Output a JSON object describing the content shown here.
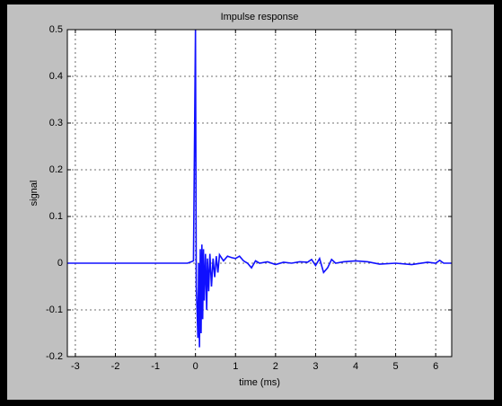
{
  "chart_data": {
    "type": "line",
    "title": "Impulse response",
    "xlabel": "time (ms)",
    "ylabel": "signal",
    "x": [
      -3.2,
      -0.2,
      -0.1,
      -0.05,
      0,
      0.02,
      0.04,
      0.06,
      0.08,
      0.1,
      0.12,
      0.14,
      0.16,
      0.18,
      0.2,
      0.22,
      0.25,
      0.28,
      0.3,
      0.33,
      0.36,
      0.4,
      0.44,
      0.48,
      0.52,
      0.56,
      0.6,
      0.7,
      0.8,
      0.9,
      1.0,
      1.1,
      1.2,
      1.3,
      1.4,
      1.5,
      1.6,
      1.8,
      2.0,
      2.2,
      2.4,
      2.6,
      2.8,
      2.9,
      3.0,
      3.1,
      3.2,
      3.3,
      3.4,
      3.5,
      3.7,
      4.0,
      4.3,
      4.6,
      5.0,
      5.4,
      5.8,
      6.0,
      6.1,
      6.2,
      6.4
    ],
    "values": [
      0,
      0,
      0.003,
      0.005,
      0.5,
      -0.05,
      -0.1,
      -0.16,
      0.0,
      -0.18,
      0.03,
      -0.15,
      0.04,
      -0.12,
      0.03,
      -0.08,
      0.02,
      -0.1,
      0.01,
      -0.06,
      0.02,
      -0.05,
      0.01,
      -0.03,
      0.015,
      -0.02,
      0.018,
      0.005,
      0.015,
      0.012,
      0.01,
      0.015,
      0.005,
      0.0,
      -0.01,
      0.005,
      0.0,
      0.003,
      -0.003,
      0.002,
      0.0,
      0.003,
      0.002,
      0.008,
      -0.005,
      0.01,
      -0.02,
      -0.01,
      0.008,
      0.0,
      0.003,
      0.005,
      0.003,
      -0.002,
      0.0,
      -0.003,
      0.002,
      0.0,
      0.006,
      0.0,
      0.0
    ],
    "color": "#1010ff",
    "xlim": [
      -3.2,
      6.4
    ],
    "xticks": [
      -3,
      -2,
      -1,
      0,
      1,
      2,
      3,
      4,
      5,
      6
    ],
    "ylim": [
      -0.2,
      0.5
    ],
    "yticks": [
      -0.2,
      -0.1,
      0,
      0.1,
      0.2,
      0.3,
      0.4,
      0.5
    ],
    "grid": true
  }
}
